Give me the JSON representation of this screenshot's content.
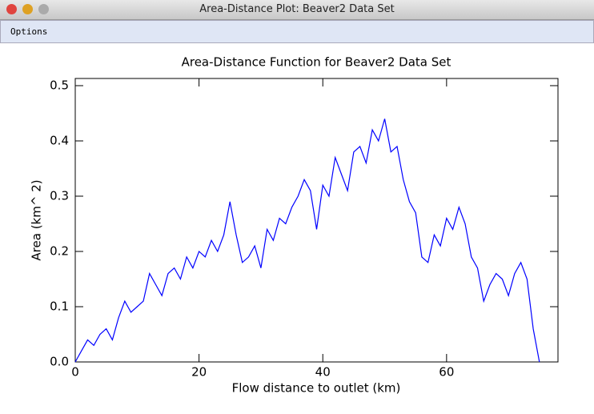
{
  "window": {
    "title": "Area-Distance Plot: Beaver2 Data Set"
  },
  "menu": {
    "items": [
      "Options"
    ]
  },
  "chart_data": {
    "type": "line",
    "title": "Area-Distance Function for Beaver2 Data Set",
    "x_label": "Flow distance to outlet (km)",
    "y_label": "Area (km^ 2)",
    "x": [
      0,
      1,
      2,
      3,
      4,
      5,
      6,
      7,
      8,
      9,
      10,
      11,
      12,
      13,
      14,
      15,
      16,
      17,
      18,
      19,
      20,
      21,
      22,
      23,
      24,
      25,
      26,
      27,
      28,
      29,
      30,
      31,
      32,
      33,
      34,
      35,
      36,
      37,
      38,
      39,
      40,
      41,
      42,
      43,
      44,
      45,
      46,
      47,
      48,
      49,
      50,
      51,
      52,
      53,
      54,
      55,
      56,
      57,
      58,
      59,
      60,
      61,
      62,
      63,
      64,
      65,
      66,
      67,
      68,
      69,
      70,
      71,
      72,
      73,
      74,
      75
    ],
    "series": [
      {
        "name": "Area",
        "color": "#0000ff",
        "values": [
          0.0,
          0.02,
          0.04,
          0.03,
          0.05,
          0.06,
          0.04,
          0.08,
          0.11,
          0.09,
          0.1,
          0.11,
          0.16,
          0.14,
          0.12,
          0.16,
          0.17,
          0.15,
          0.19,
          0.17,
          0.2,
          0.19,
          0.22,
          0.2,
          0.23,
          0.29,
          0.23,
          0.18,
          0.19,
          0.21,
          0.17,
          0.24,
          0.22,
          0.26,
          0.25,
          0.28,
          0.3,
          0.33,
          0.31,
          0.24,
          0.32,
          0.3,
          0.37,
          0.34,
          0.31,
          0.38,
          0.39,
          0.36,
          0.42,
          0.4,
          0.44,
          0.38,
          0.39,
          0.33,
          0.29,
          0.27,
          0.19,
          0.18,
          0.23,
          0.21,
          0.26,
          0.24,
          0.28,
          0.25,
          0.19,
          0.17,
          0.11,
          0.14,
          0.16,
          0.15,
          0.12,
          0.16,
          0.18,
          0.15,
          0.06,
          0.0
        ]
      }
    ],
    "xlim": [
      0,
      78
    ],
    "xticks": [
      0,
      20,
      40,
      60
    ],
    "ylim": [
      0,
      0.513
    ],
    "yticks": [
      {
        "value": 0,
        "label": "0.0"
      },
      0.1,
      0.2,
      0.3,
      0.4,
      0.5
    ]
  }
}
